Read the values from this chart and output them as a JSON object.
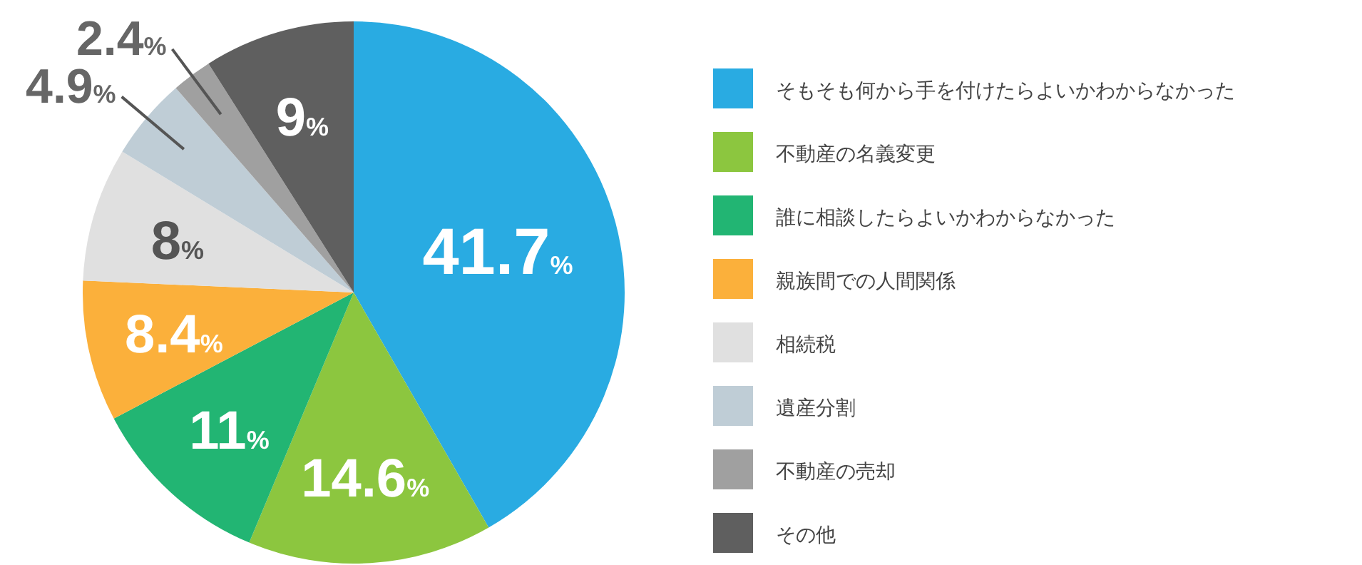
{
  "chart_data": {
    "type": "pie",
    "categories": [
      "そもそも何から手を付けたらよいかわからなかった",
      "不動産の名義変更",
      "誰に相談したらよいかわからなかった",
      "親族間での人間関係",
      "相続税",
      "遺産分割",
      "不動産の売却",
      "その他"
    ],
    "values": [
      41.7,
      14.6,
      11,
      8.4,
      8,
      4.9,
      2.4,
      9
    ],
    "colors": [
      "#29abe2",
      "#8cc63f",
      "#22b573",
      "#fbb03b",
      "#e0e0e0",
      "#bfcdd6",
      "#a0a0a0",
      "#5f5f5f"
    ],
    "value_labels": [
      "41.7%",
      "14.6%",
      "11%",
      "8.4%",
      "8%",
      "4.9%",
      "2.4%",
      "9%"
    ],
    "legend": "right"
  }
}
